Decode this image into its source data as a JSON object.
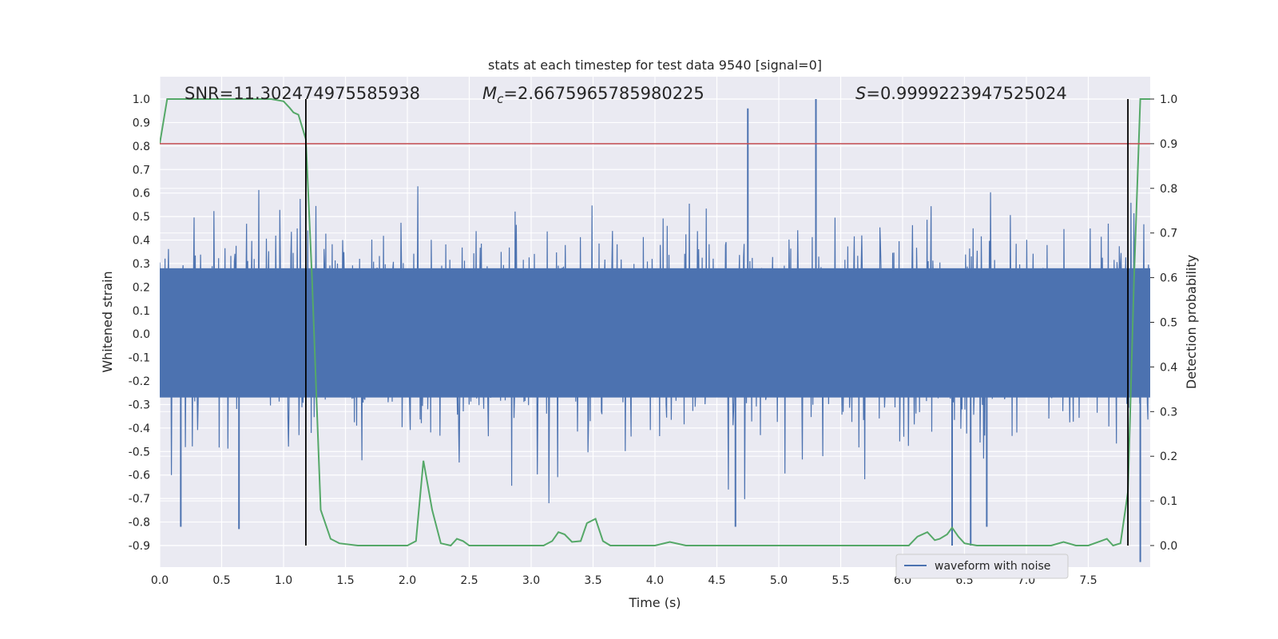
{
  "chart_data": {
    "type": "line",
    "title": "stats at each timestep for test data 9540 [signal=0]",
    "xlabel": "Time (s)",
    "ylabel": "Whitened strain",
    "ylabel_right": "Detection probability",
    "xlim": [
      0,
      8
    ],
    "ylim": [
      -0.95,
      1.08
    ],
    "ylim_right": [
      -0.05,
      1.03
    ],
    "x_ticks": [
      "0.0",
      "0.5",
      "1.0",
      "1.5",
      "2.0",
      "2.5",
      "3.0",
      "3.5",
      "4.0",
      "4.5",
      "5.0",
      "5.5",
      "6.0",
      "6.5",
      "7.0",
      "7.5"
    ],
    "y_ticks": [
      "1.0",
      "0.9",
      "0.8",
      "0.7",
      "0.6",
      "0.5",
      "0.4",
      "0.3",
      "0.2",
      "0.1",
      "0.0",
      "-0.1",
      "-0.2",
      "-0.3",
      "-0.4",
      "-0.5",
      "-0.6",
      "-0.7",
      "-0.8",
      "-0.9"
    ],
    "y_ticks_right": [
      "1.0",
      "0.9",
      "0.8",
      "0.7",
      "0.6",
      "0.5",
      "0.4",
      "0.3",
      "0.2",
      "0.1",
      "0.0"
    ],
    "grid": true,
    "legend": {
      "placement": "lower-right",
      "entries": [
        "waveform with noise"
      ]
    },
    "annotations": {
      "snr": "SNR=11.302474975585938",
      "mc_symbol": "M",
      "mc_sub": "c",
      "mc_value": "=2.6675965785980225",
      "s_symbol": "S",
      "s_value": "=0.9999223947525024"
    },
    "threshold_line": {
      "axis": "right",
      "value": 0.9,
      "color": "#c44e52"
    },
    "vertical_lines": [
      {
        "x": 1.18,
        "y_from": -0.9,
        "y_to": 1.0
      },
      {
        "x": 7.82,
        "y_from": -0.9,
        "y_to": 1.0
      }
    ],
    "waveform": {
      "name": "waveform with noise",
      "color": "#4c72b0",
      "core_band": [
        -0.27,
        0.28
      ],
      "typical_extent": [
        -0.55,
        0.6
      ],
      "notable_spikes": [
        {
          "x": 4.75,
          "y": 0.96
        },
        {
          "x": 5.3,
          "y": 1.0
        },
        {
          "x": 0.17,
          "y": -0.82
        },
        {
          "x": 0.64,
          "y": -0.83
        },
        {
          "x": 4.65,
          "y": -0.82
        },
        {
          "x": 6.4,
          "y": -0.9
        },
        {
          "x": 6.55,
          "y": -0.9
        },
        {
          "x": 6.68,
          "y": -0.82
        },
        {
          "x": 7.92,
          "y": -0.97
        }
      ]
    },
    "probability_series": {
      "name": "Detection probability",
      "color": "#55a868",
      "x": [
        0.0,
        0.06,
        0.5,
        0.9,
        1.0,
        1.05,
        1.08,
        1.12,
        1.18,
        1.23,
        1.3,
        1.38,
        1.45,
        1.6,
        1.8,
        2.0,
        2.07,
        2.13,
        2.2,
        2.27,
        2.35,
        2.4,
        2.45,
        2.5,
        2.6,
        2.8,
        3.0,
        3.1,
        3.17,
        3.22,
        3.27,
        3.33,
        3.4,
        3.45,
        3.52,
        3.58,
        3.64,
        3.7,
        3.8,
        4.0,
        4.12,
        4.25,
        4.5,
        4.75,
        5.0,
        5.5,
        5.8,
        6.05,
        6.12,
        6.2,
        6.26,
        6.3,
        6.36,
        6.4,
        6.45,
        6.5,
        6.6,
        6.7,
        6.8,
        6.9,
        7.0,
        7.1,
        7.2,
        7.3,
        7.4,
        7.5,
        7.6,
        7.65,
        7.7,
        7.76,
        7.82,
        7.87,
        7.92,
        8.0
      ],
      "y": [
        0.9,
        1.0,
        1.0,
        1.0,
        0.995,
        0.98,
        0.97,
        0.965,
        0.91,
        0.6,
        0.08,
        0.015,
        0.005,
        0.0,
        0.0,
        0.0,
        0.01,
        0.19,
        0.08,
        0.005,
        0.0,
        0.015,
        0.01,
        0.0,
        0.0,
        0.0,
        0.0,
        0.0,
        0.01,
        0.03,
        0.025,
        0.008,
        0.01,
        0.05,
        0.06,
        0.01,
        0.0,
        0.0,
        0.0,
        0.0,
        0.008,
        0.0,
        0.0,
        0.0,
        0.0,
        0.0,
        0.0,
        0.0,
        0.02,
        0.03,
        0.012,
        0.015,
        0.025,
        0.04,
        0.02,
        0.005,
        0.0,
        0.0,
        0.0,
        0.0,
        0.0,
        0.0,
        0.0,
        0.008,
        0.0,
        0.0,
        0.01,
        0.015,
        0.0,
        0.005,
        0.12,
        0.6,
        1.0,
        1.0
      ]
    }
  }
}
